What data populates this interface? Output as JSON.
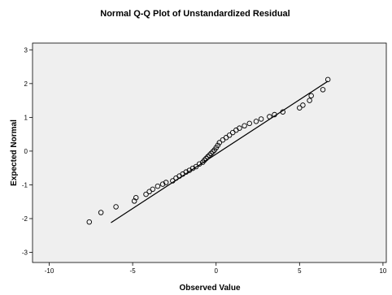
{
  "chart_data": {
    "type": "scatter",
    "title": "Normal Q-Q Plot of Unstandardized Residual",
    "xlabel": "Observed Value",
    "ylabel": "Expected Normal",
    "xlim": [
      -11,
      10.2
    ],
    "ylim": [
      -3.3,
      3.2
    ],
    "x_ticks": [
      -10,
      -5,
      0,
      5,
      10
    ],
    "y_ticks": [
      -3,
      -2,
      -1,
      0,
      1,
      2,
      3
    ],
    "grid": false,
    "colors": {
      "background": "#efefef",
      "marker": "#000000",
      "line": "#000000"
    },
    "reference_line": {
      "x": [
        -6.3,
        6.7
      ],
      "y": [
        -2.12,
        2.07
      ]
    },
    "points": {
      "x": [
        -7.6,
        -6.9,
        -6.0,
        -4.9,
        -4.8,
        -4.2,
        -4.0,
        -3.8,
        -3.5,
        -3.2,
        -3.0,
        -2.6,
        -2.4,
        -2.2,
        -2.0,
        -1.8,
        -1.6,
        -1.4,
        -1.2,
        -1.0,
        -0.8,
        -0.7,
        -0.6,
        -0.5,
        -0.4,
        -0.3,
        -0.2,
        -0.1,
        0.0,
        0.1,
        0.2,
        0.4,
        0.6,
        0.8,
        1.0,
        1.2,
        1.4,
        1.7,
        2.0,
        2.4,
        2.7,
        3.2,
        3.5,
        4.0,
        5.0,
        5.2,
        5.6,
        5.7,
        6.4,
        6.7
      ],
      "y": [
        -2.1,
        -1.82,
        -1.65,
        -1.48,
        -1.38,
        -1.28,
        -1.2,
        -1.13,
        -1.04,
        -0.98,
        -0.93,
        -0.88,
        -0.8,
        -0.74,
        -0.68,
        -0.62,
        -0.57,
        -0.51,
        -0.46,
        -0.38,
        -0.33,
        -0.27,
        -0.22,
        -0.17,
        -0.12,
        -0.07,
        -0.02,
        0.03,
        0.1,
        0.17,
        0.25,
        0.33,
        0.4,
        0.47,
        0.55,
        0.62,
        0.68,
        0.75,
        0.82,
        0.88,
        0.95,
        1.02,
        1.08,
        1.16,
        1.28,
        1.36,
        1.5,
        1.64,
        1.82,
        2.12
      ]
    }
  }
}
